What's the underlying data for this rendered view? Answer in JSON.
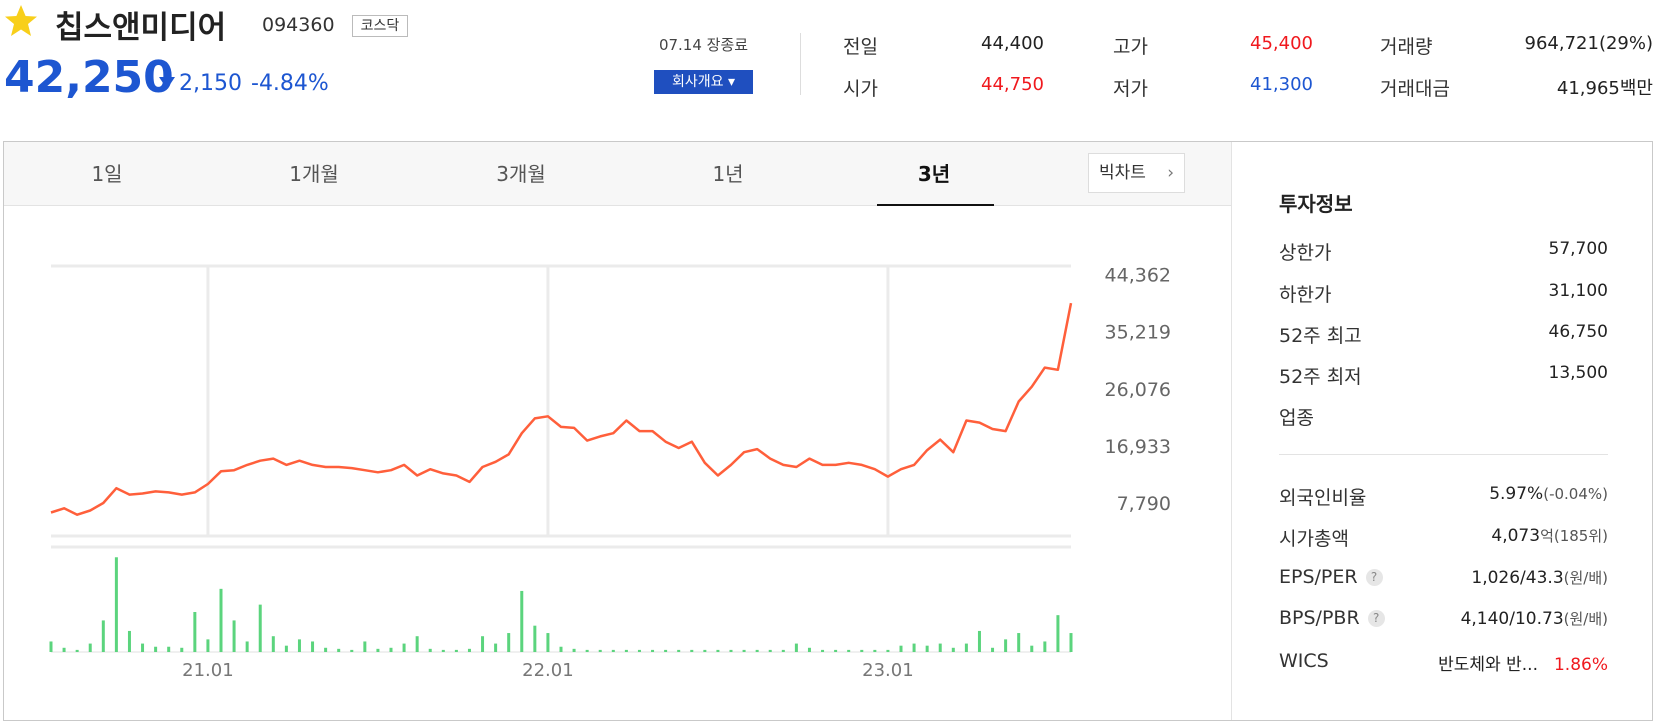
{
  "header": {
    "name": "칩스앤미디어",
    "code": "094360",
    "market": "코스닥",
    "price": "42,250",
    "change": "2,150",
    "change_rate": "-4.84%",
    "date": "07.14 장종료",
    "company_button": "회사개요"
  },
  "quote": [
    [
      {
        "label": "전일",
        "value": "44,400"
      },
      {
        "label": "고가",
        "value": "45,400"
      },
      {
        "label": "거래량",
        "value": "964,721",
        "suffix": "(29%)"
      }
    ],
    [
      {
        "label": "시가",
        "value": "44,750"
      },
      {
        "label": "저가",
        "value": "41,300"
      },
      {
        "label": "거래대금",
        "value": "41,965",
        "suffix": "백만"
      }
    ]
  ],
  "tabs": {
    "items": [
      "1일",
      "1개월",
      "3개월",
      "1년",
      "3년"
    ],
    "big_chart": "빅차트"
  },
  "chart_data": {
    "type": "line",
    "color": "#ff5f3b",
    "categories": [
      null,
      null,
      null,
      null,
      null,
      null,
      null,
      null,
      null,
      null,
      null,
      null,
      "21.01",
      null,
      null,
      null,
      null,
      null,
      null,
      null,
      null,
      null,
      null,
      null,
      null,
      null,
      null,
      null,
      null,
      null,
      null,
      null,
      null,
      null,
      null,
      null,
      null,
      null,
      "22.01",
      null,
      null,
      null,
      null,
      null,
      null,
      null,
      null,
      null,
      null,
      null,
      null,
      null,
      null,
      null,
      null,
      null,
      null,
      null,
      null,
      null,
      null,
      null,
      null,
      null,
      "23.01",
      null,
      null,
      null,
      null,
      null,
      null,
      null,
      null,
      null,
      null,
      null,
      null,
      null,
      null
    ],
    "values": [
      6269,
      6946,
      5930,
      6600,
      7790,
      10163,
      9147,
      9317,
      9655,
      9487,
      9147,
      9487,
      10840,
      12873,
      13042,
      13889,
      14566,
      14904,
      13889,
      14566,
      13889,
      13551,
      13551,
      13381,
      13042,
      12704,
      13042,
      13889,
      12196,
      13211,
      12535,
      12196,
      11180,
      13551,
      14397,
      15582,
      18968,
      21337,
      21676,
      19983,
      19814,
      17783,
      18460,
      18968,
      21000,
      19306,
      19306,
      17613,
      16597,
      17613,
      14227,
      12196,
      13889,
      15921,
      16428,
      14904,
      13889,
      13551,
      14904,
      13889,
      13889,
      14227,
      13889,
      13211,
      12026,
      13211,
      13889,
      16259,
      17952,
      15921,
      21000,
      20660,
      19645,
      19306,
      24046,
      26416,
      29464,
      29126,
      39791
    ],
    "ylim": [
      2033,
      46055
    ],
    "yticks": [
      {
        "value": 44362,
        "label": "44,362"
      },
      {
        "value": 35219,
        "label": "35,219"
      },
      {
        "value": 26076,
        "label": "26,076"
      },
      {
        "value": 16933,
        "label": "16,933"
      },
      {
        "value": 7790,
        "label": "7,790"
      }
    ],
    "volume": {
      "type": "bar",
      "color": "#5bd47d",
      "ylim": [
        0,
        95
      ],
      "values": [
        10,
        4,
        2,
        8,
        30,
        90,
        20,
        8,
        5,
        5,
        4,
        38,
        12,
        60,
        30,
        10,
        45,
        15,
        6,
        12,
        10,
        4,
        3,
        2,
        10,
        3,
        4,
        8,
        15,
        3,
        2,
        2,
        3,
        15,
        8,
        18,
        58,
        25,
        18,
        5,
        3,
        2,
        2,
        2,
        2,
        2,
        2,
        2,
        2,
        2,
        2,
        2,
        2,
        2,
        2,
        2,
        2,
        8,
        4,
        2,
        2,
        2,
        2,
        2,
        2,
        6,
        8,
        6,
        8,
        4,
        8,
        20,
        4,
        12,
        18,
        6,
        10,
        35,
        18
      ]
    }
  },
  "invest": {
    "title": "투자정보",
    "help": "?",
    "rows": [
      {
        "label": "상한가",
        "value": "57,700"
      },
      {
        "label": "하한가",
        "value": "31,100"
      },
      {
        "label": "52주 최고",
        "value": "46,750"
      },
      {
        "label": "52주 최저",
        "value": "13,500"
      },
      {
        "label": "업종"
      }
    ],
    "rows2": [
      {
        "label": "외국인비율",
        "value": "5.97%",
        "suffix": "(-0.04%)"
      },
      {
        "label": "시가총액",
        "value": "4,073",
        "suffix": "억(185위)"
      },
      {
        "label": "EPS/PER",
        "value": "1,026/43.3",
        "suffix": "(원/배)"
      },
      {
        "label": "BPS/PBR",
        "value": "4,140/10.73",
        "suffix": "(원/배)"
      },
      {
        "label": "WICS",
        "value": "반도체와 반...",
        "suffix": "1.86%"
      }
    ]
  }
}
